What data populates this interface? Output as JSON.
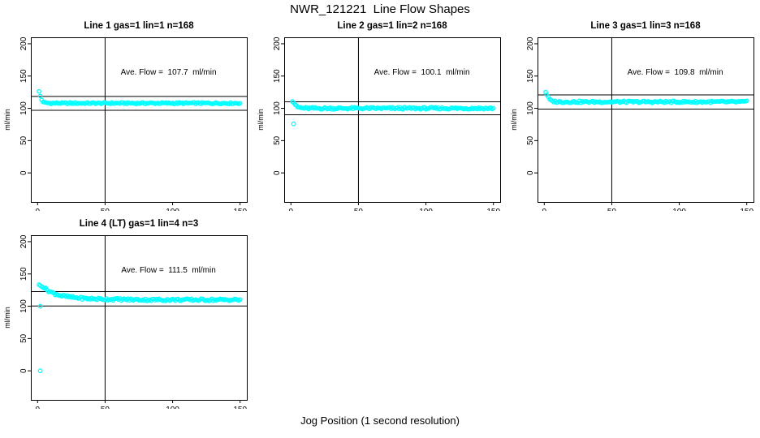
{
  "figure": {
    "title": "NWR_121221  Line Flow Shapes",
    "xlabel": "Jog Position (1 second resolution)",
    "background": "#ffffff",
    "line_color": "#000000",
    "point_color": "#00ffff"
  },
  "chart_data": [
    {
      "type": "scatter",
      "title": "Line 1 gas=1 lin=1 n=168",
      "annotation": "Ave. Flow =  107.7  ml/min",
      "ave_flow": 107.7,
      "ylabel": "ml/min",
      "xlim": [
        -5,
        155
      ],
      "ylim": [
        -45,
        210
      ],
      "xticks": [
        0,
        50,
        100,
        150
      ],
      "yticks": [
        0,
        50,
        100,
        150,
        200
      ],
      "grid": false,
      "vline_x": 50,
      "hlines": [
        118.5,
        96.9
      ],
      "x_range": [
        1,
        150
      ],
      "band_halfwidth": 1.2,
      "profile": [
        [
          1,
          126
        ],
        [
          2,
          119
        ],
        [
          3,
          113
        ],
        [
          4,
          110
        ],
        [
          6,
          108.5
        ],
        [
          10,
          108
        ],
        [
          150,
          108
        ]
      ],
      "outliers": []
    },
    {
      "type": "scatter",
      "title": "Line 2 gas=1 lin=2 n=168",
      "annotation": "Ave. Flow =  100.1  ml/min",
      "ave_flow": 100.1,
      "ylabel": "ml/min",
      "xlim": [
        -5,
        155
      ],
      "ylim": [
        -45,
        210
      ],
      "xticks": [
        0,
        50,
        100,
        150
      ],
      "yticks": [
        0,
        50,
        100,
        150,
        200
      ],
      "grid": false,
      "vline_x": 50,
      "hlines": [
        110.1,
        90.1
      ],
      "x_range": [
        1,
        150
      ],
      "band_halfwidth": 1.6,
      "profile": [
        [
          1,
          111
        ],
        [
          2,
          109
        ],
        [
          3,
          106
        ],
        [
          5,
          102
        ],
        [
          8,
          100.5
        ],
        [
          12,
          100
        ],
        [
          150,
          100
        ]
      ],
      "outliers": [
        [
          2,
          76
        ]
      ]
    },
    {
      "type": "scatter",
      "title": "Line 3 gas=1 lin=3 n=168",
      "annotation": "Ave. Flow =  109.8  ml/min",
      "ave_flow": 109.8,
      "ylabel": "ml/min",
      "xlim": [
        -5,
        155
      ],
      "ylim": [
        -45,
        210
      ],
      "xticks": [
        0,
        50,
        100,
        150
      ],
      "yticks": [
        0,
        50,
        100,
        150,
        200
      ],
      "grid": false,
      "vline_x": 50,
      "hlines": [
        120.8,
        98.8
      ],
      "x_range": [
        1,
        150
      ],
      "band_halfwidth": 1.5,
      "profile": [
        [
          1,
          125
        ],
        [
          2,
          121
        ],
        [
          4,
          114
        ],
        [
          6,
          111
        ],
        [
          10,
          110
        ],
        [
          150,
          110
        ]
      ],
      "outliers": []
    },
    {
      "type": "scatter",
      "title": "Line 4 (LT) gas=1 lin=4 n=3",
      "annotation": "Ave. Flow =  111.5  ml/min",
      "ave_flow": 111.5,
      "ylabel": "ml/min",
      "xlim": [
        -5,
        155
      ],
      "ylim": [
        -45,
        210
      ],
      "xticks": [
        0,
        50,
        100,
        150
      ],
      "yticks": [
        0,
        50,
        100,
        150,
        200
      ],
      "grid": false,
      "vline_x": 50,
      "hlines": [
        122.7,
        100.4
      ],
      "x_range": [
        1,
        150
      ],
      "band_halfwidth": 1.8,
      "profile": [
        [
          1,
          133
        ],
        [
          2,
          132
        ],
        [
          3,
          131
        ],
        [
          5,
          128
        ],
        [
          8,
          124
        ],
        [
          12,
          120
        ],
        [
          18,
          116
        ],
        [
          25,
          114
        ],
        [
          35,
          112
        ],
        [
          50,
          111
        ],
        [
          80,
          110
        ],
        [
          150,
          110
        ]
      ],
      "outliers": [
        [
          2,
          100
        ],
        [
          2,
          0
        ]
      ]
    }
  ]
}
